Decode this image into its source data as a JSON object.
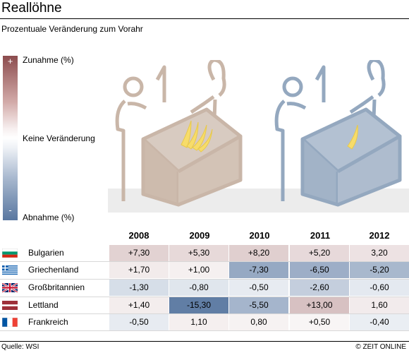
{
  "title": "Reallöhne",
  "subtitle": "Prozentuale Veränderung zum Vorahr",
  "legend": {
    "plus_symbol": "+",
    "minus_symbol": "-",
    "top_label": "Zunahme (%)",
    "middle_label": "Keine Veränderung",
    "bottom_label": "Abnahme (%)"
  },
  "chart_data": {
    "type": "heatmap",
    "columns": [
      "2008",
      "2009",
      "2010",
      "2011",
      "2012"
    ],
    "rows": [
      {
        "country": "Bulgarien",
        "flag": "bulgaria-flag",
        "values": [
          7.3,
          5.3,
          8.2,
          5.2,
          3.2
        ],
        "labels": [
          "+7,30",
          "+5,30",
          "+8,20",
          "+5,20",
          "3,20"
        ]
      },
      {
        "country": "Griechenland",
        "flag": "greece-flag",
        "values": [
          1.7,
          1.0,
          -7.3,
          -6.5,
          -5.2
        ],
        "labels": [
          "+1,70",
          "+1,00",
          "-7,30",
          "-6,50",
          "-5,20"
        ]
      },
      {
        "country": "Großbritannien",
        "flag": "uk-flag",
        "values": [
          -1.3,
          -0.8,
          -0.5,
          -2.6,
          -0.6
        ],
        "labels": [
          "-1,30",
          "-0,80",
          "-0,50",
          "-2,60",
          "-0,60"
        ]
      },
      {
        "country": "Lettland",
        "flag": "latvia-flag",
        "values": [
          1.4,
          -15.3,
          -5.5,
          13.0,
          1.6
        ],
        "labels": [
          "+1,40",
          "-15,30",
          "-5,50",
          "+13,00",
          "1,60"
        ]
      },
      {
        "country": "Frankreich",
        "flag": "france-flag",
        "values": [
          -0.5,
          1.1,
          0.8,
          0.5,
          -0.4
        ],
        "labels": [
          "-0,50",
          "1,10",
          "0,80",
          "+0,50",
          "-0,40"
        ]
      }
    ],
    "colors": {
      "positive": "#8c4c4e",
      "negative": "#5977a0",
      "neutral": "#ffffff"
    }
  },
  "footer": {
    "source": "Quelle: WSI",
    "copyright": "© ZEIT ONLINE"
  }
}
